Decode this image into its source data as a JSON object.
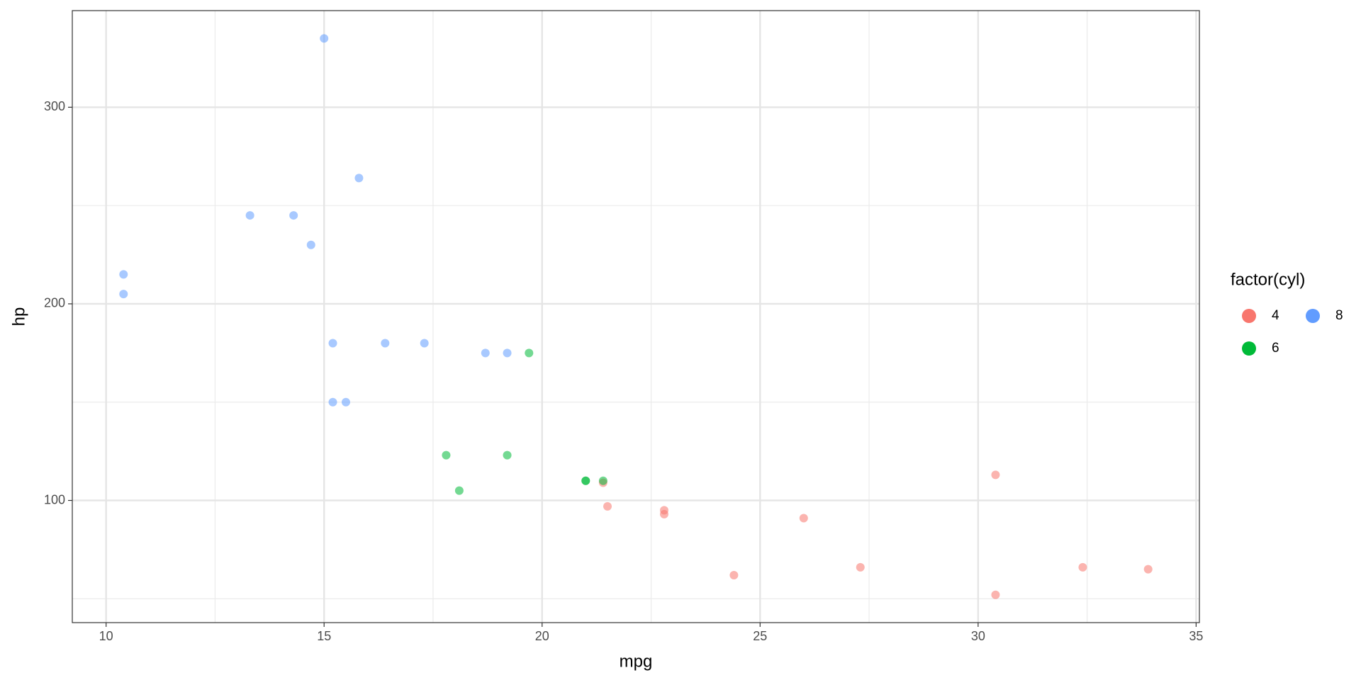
{
  "chart_data": {
    "type": "scatter",
    "x_label": "mpg",
    "y_label": "hp",
    "legend_title": "factor(cyl)",
    "legend_position": "right",
    "grid": true,
    "xlim": [
      9.225,
      35.075
    ],
    "ylim": [
      37.85,
      349.15
    ],
    "xticks": [
      10,
      15,
      20,
      25,
      30,
      35
    ],
    "yticks": [
      100,
      200,
      300
    ],
    "series": [
      {
        "name": "4",
        "color": "#F8766D",
        "x": [
          22.8,
          24.4,
          22.8,
          32.4,
          30.4,
          33.9,
          21.5,
          27.3,
          26.0,
          30.4,
          21.4
        ],
        "values": [
          93,
          62,
          95,
          66,
          52,
          65,
          97,
          66,
          91,
          113,
          109
        ]
      },
      {
        "name": "6",
        "color": "#00BA38",
        "x": [
          21.0,
          21.0,
          21.4,
          18.1,
          19.2,
          17.8,
          19.7
        ],
        "values": [
          110,
          110,
          110,
          105,
          123,
          123,
          175
        ]
      },
      {
        "name": "8",
        "color": "#619CFF",
        "x": [
          18.7,
          14.3,
          16.4,
          17.3,
          15.2,
          10.4,
          10.4,
          14.7,
          15.5,
          15.2,
          13.3,
          19.2,
          15.8,
          15.0
        ],
        "values": [
          175,
          245,
          180,
          180,
          180,
          205,
          215,
          230,
          150,
          150,
          245,
          175,
          264,
          335
        ]
      }
    ]
  }
}
